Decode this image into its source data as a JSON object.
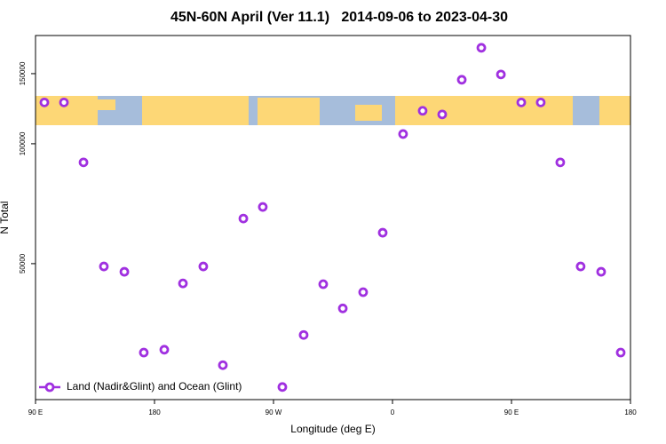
{
  "chart_data": {
    "type": "scatter",
    "title": "45N-60N April (Ver 11.1)   2014-09-06 to 2023-04-30",
    "x_label": "Longitude (deg E)",
    "y_label": "N Total",
    "xlim": [
      90,
      540
    ],
    "xticks": [
      {
        "value": 90,
        "label": "90 E"
      },
      {
        "value": 180,
        "label": "180"
      },
      {
        "value": 270,
        "label": "90 W"
      },
      {
        "value": 360,
        "label": "0"
      },
      {
        "value": 450,
        "label": "90 E"
      },
      {
        "value": 540,
        "label": "180"
      }
    ],
    "ylim": [
      22780,
      187000
    ],
    "yticks": [
      50000,
      100000,
      150000
    ],
    "y_scale": "log",
    "legend": "lower left",
    "series": [
      {
        "name": "Land (Nadir&Glint) and Ocean (Glint)",
        "color": "#a030e0",
        "x": [
          96.7,
          111.5,
          126.3,
          141.7,
          157.2,
          171.9,
          187.4,
          201.5,
          216.9,
          231.7,
          247.2,
          261.9,
          276.7,
          292.8,
          307.6,
          322.4,
          337.8,
          352.6,
          368.0,
          382.8,
          397.6,
          412.4,
          427.2,
          442.0,
          457.4,
          472.1,
          486.9,
          502.3,
          517.8,
          532.6
        ],
        "values": [
          127000,
          127000,
          89800,
          49200,
          47700,
          29900,
          30400,
          44600,
          49200,
          27800,
          64900,
          69400,
          24500,
          33100,
          44400,
          38600,
          42400,
          59800,
          105800,
          121000,
          118500,
          144800,
          174200,
          149300,
          127000,
          127000,
          89800,
          49200,
          47700,
          29900
        ]
      }
    ]
  }
}
